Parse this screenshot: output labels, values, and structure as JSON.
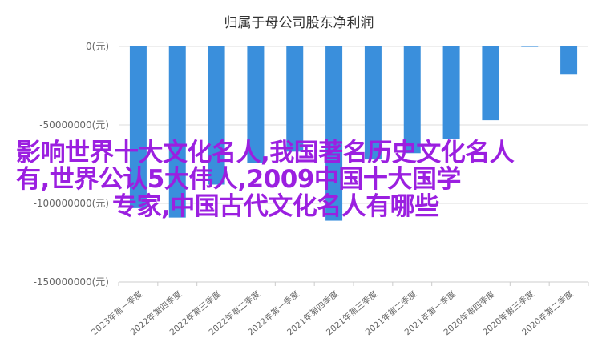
{
  "chart_data": {
    "type": "bar",
    "title": "归属于母公司股东净利润",
    "categories": [
      "2023年第一季度",
      "2022年第四季度",
      "2022年第三季度",
      "2022年第二季度",
      "2022年第一季度",
      "2021年第四季度",
      "2021年第三季度",
      "2021年第二季度",
      "2021年第一季度",
      "2020年第四季度",
      "2020年第三季度",
      "2020年第二季度"
    ],
    "series": [
      {
        "values": [
          -103000000,
          -109000000,
          -88000000,
          -74000000,
          -67000000,
          -111000000,
          -72000000,
          -68000000,
          -59000000,
          -47000000,
          -300000,
          -18000000
        ]
      }
    ],
    "ylim": [
      -150000000,
      0
    ],
    "yticks": [
      0,
      -50000000,
      -100000000,
      -150000000
    ],
    "ytick_labels": [
      "0(元)",
      "-50000000(元)",
      "-100000000(元)",
      "-150000000(元)"
    ],
    "xlabel": "",
    "ylabel": "",
    "grid": true,
    "bar_color": "#3a8fdc"
  },
  "watermark": {
    "line1": "影响世界十大文化名人,我国著名历史文化名人",
    "line2": "有,世界公认5大伟人,2009中国十大国学",
    "line3": "专家,中国古代文化名人有哪些"
  }
}
